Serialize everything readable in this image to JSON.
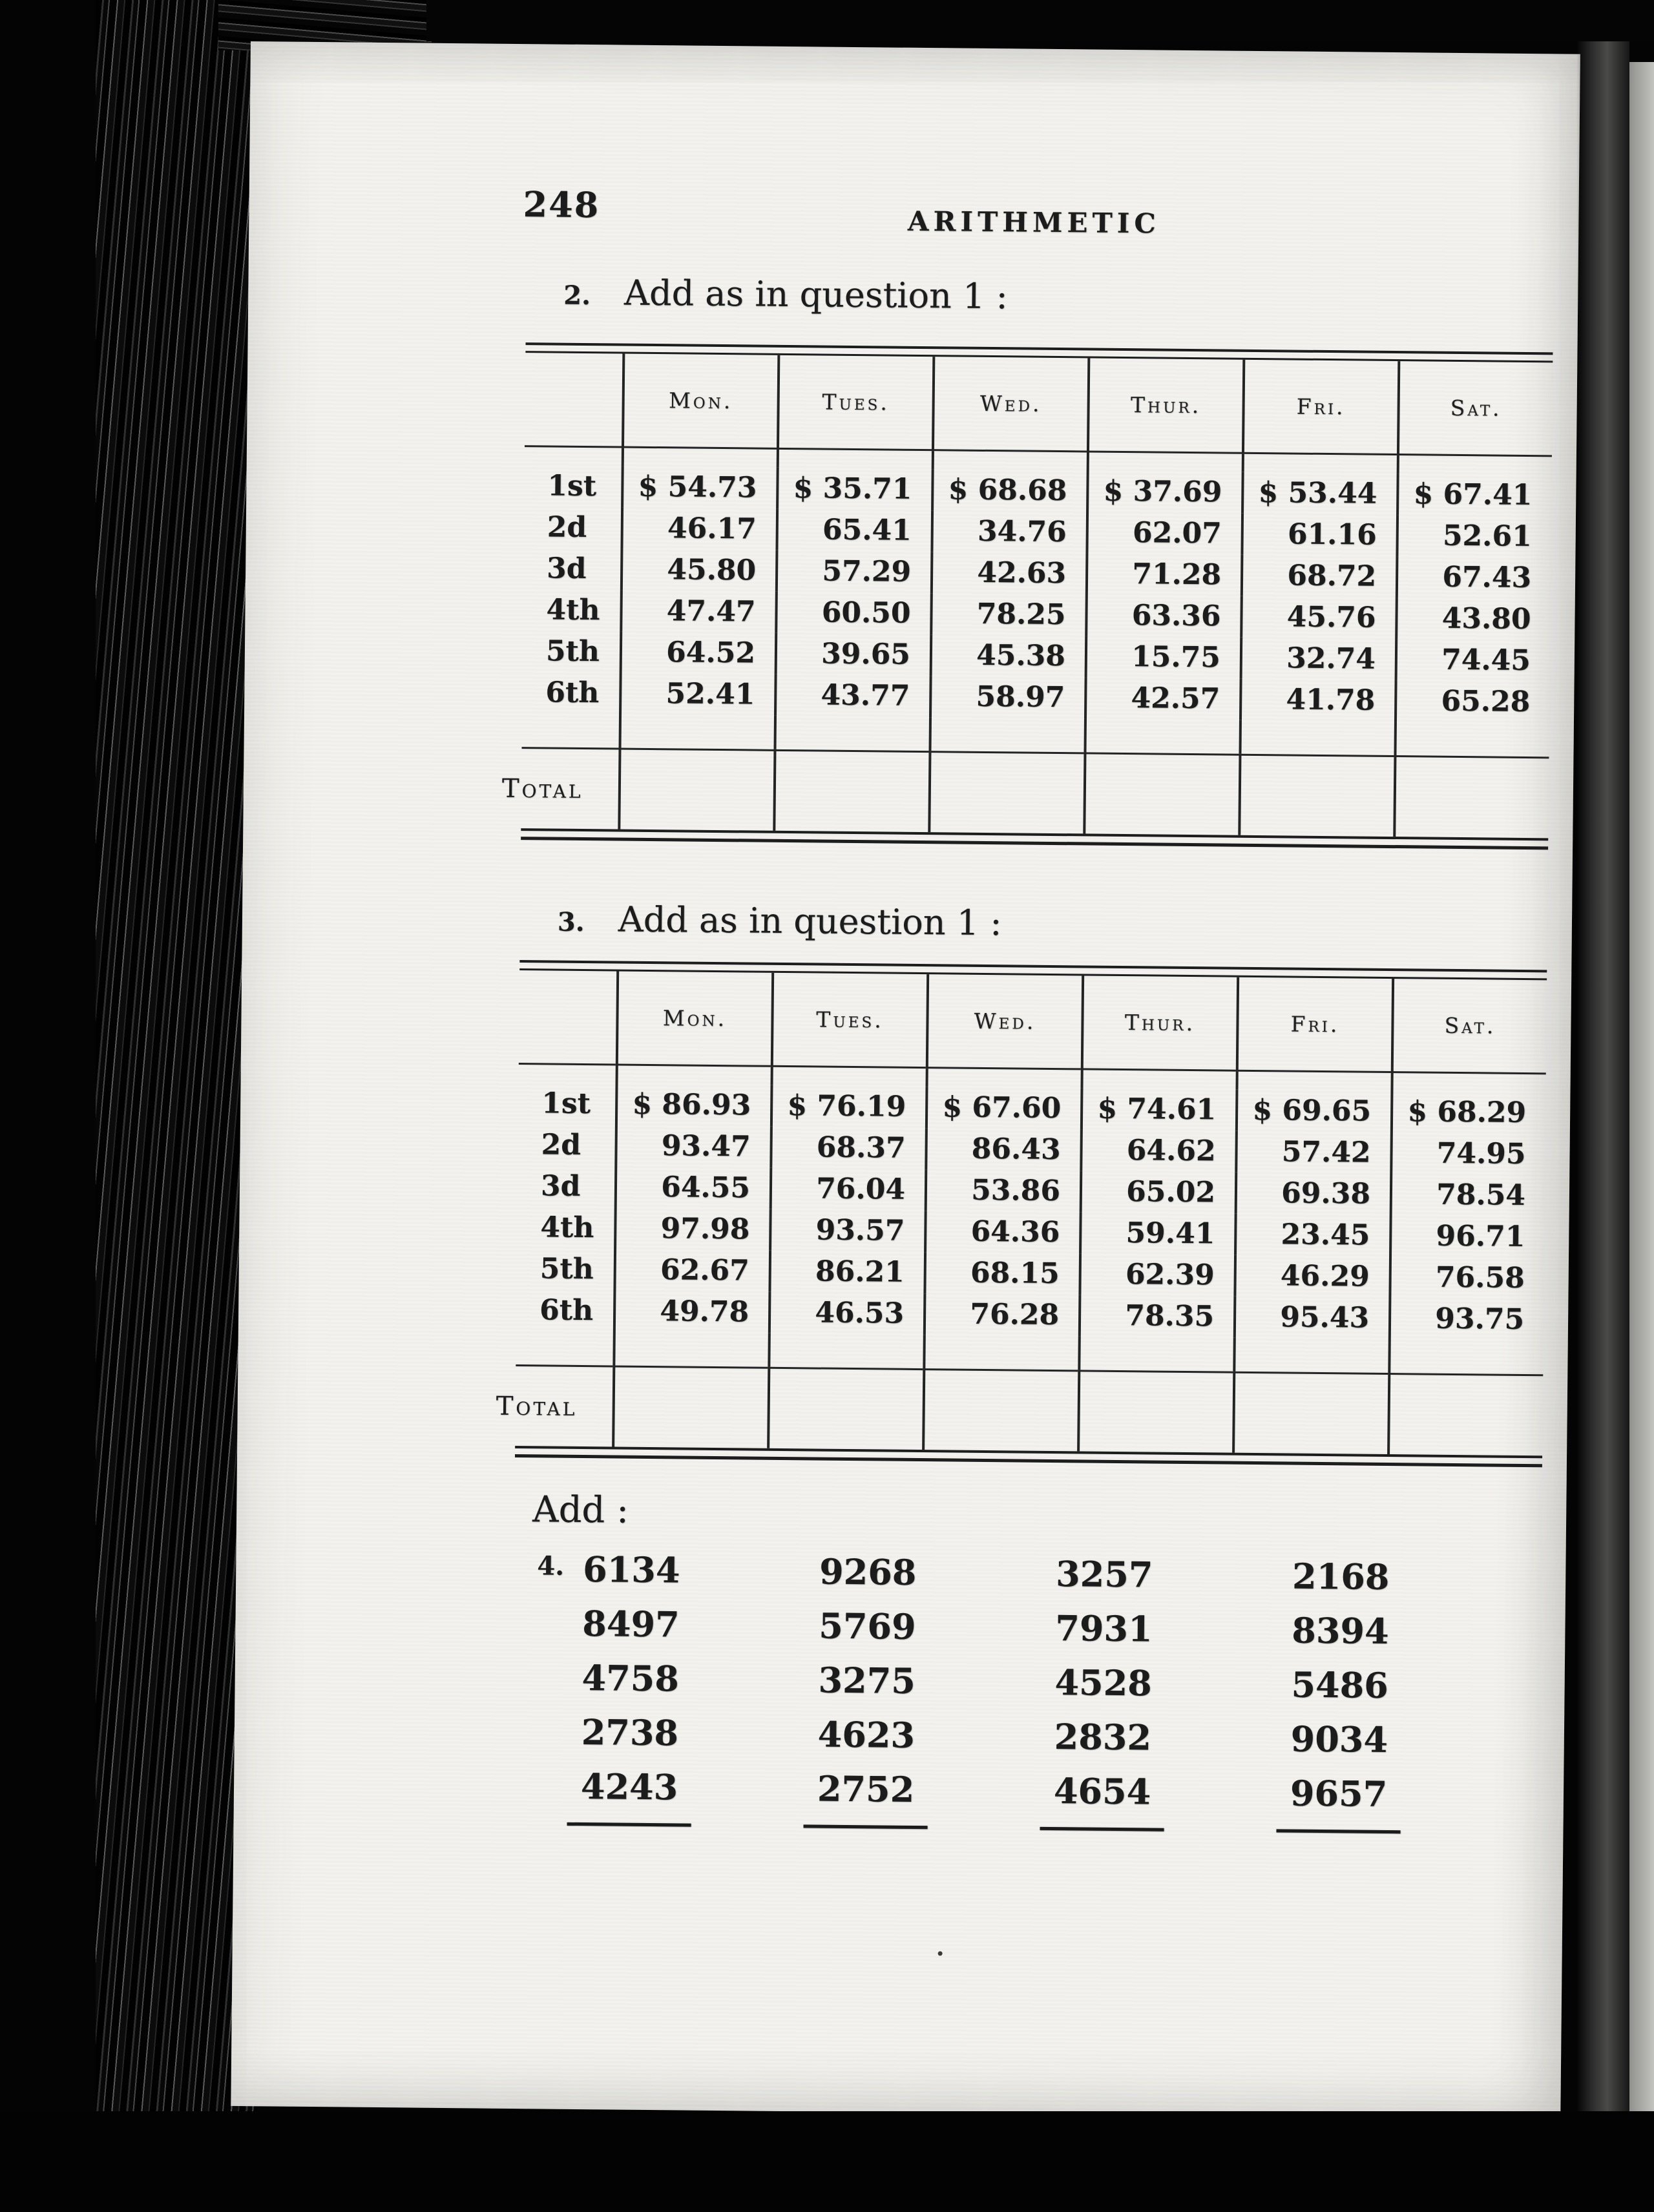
{
  "page_number": "248",
  "running_head": "ARITHMETIC",
  "colors": {
    "paper": "#f3f2ee",
    "ink": "#1c1c1c"
  },
  "problems": {
    "q2": {
      "num": "2.",
      "text": "Add as in question 1 :"
    },
    "q3": {
      "num": "3.",
      "text": "Add as in question 1 :"
    }
  },
  "tables": [
    {
      "columns": [
        "Mon.",
        "Tues.",
        "Wed.",
        "Thur.",
        "Fri.",
        "Sat."
      ],
      "row_labels": [
        "1st",
        "2d",
        "3d",
        "4th",
        "5th",
        "6th"
      ],
      "rows": [
        [
          "$ 54.73",
          "$ 35.71",
          "$ 68.68",
          "$ 37.69",
          "$ 53.44",
          "$ 67.41"
        ],
        [
          "46.17",
          "65.41",
          "34.76",
          "62.07",
          "61.16",
          "52.61"
        ],
        [
          "45.80",
          "57.29",
          "42.63",
          "71.28",
          "68.72",
          "67.43"
        ],
        [
          "47.47",
          "60.50",
          "78.25",
          "63.36",
          "45.76",
          "43.80"
        ],
        [
          "64.52",
          "39.65",
          "45.38",
          "15.75",
          "32.74",
          "74.45"
        ],
        [
          "52.41",
          "43.77",
          "58.97",
          "42.57",
          "41.78",
          "65.28"
        ]
      ],
      "total_label": "Total",
      "totals": [
        "",
        "",
        "",
        "",
        "",
        ""
      ]
    },
    {
      "columns": [
        "Mon.",
        "Tues.",
        "Wed.",
        "Thur.",
        "Fri.",
        "Sat."
      ],
      "row_labels": [
        "1st",
        "2d",
        "3d",
        "4th",
        "5th",
        "6th"
      ],
      "rows": [
        [
          "$ 86.93",
          "$ 76.19",
          "$ 67.60",
          "$ 74.61",
          "$ 69.65",
          "$ 68.29"
        ],
        [
          "93.47",
          "68.37",
          "86.43",
          "64.62",
          "57.42",
          "74.95"
        ],
        [
          "64.55",
          "76.04",
          "53.86",
          "65.02",
          "69.38",
          "78.54"
        ],
        [
          "97.98",
          "93.57",
          "64.36",
          "59.41",
          "23.45",
          "96.71"
        ],
        [
          "62.67",
          "86.21",
          "68.15",
          "62.39",
          "46.29",
          "76.58"
        ],
        [
          "49.78",
          "46.53",
          "76.28",
          "78.35",
          "95.43",
          "93.75"
        ]
      ],
      "total_label": "Total",
      "totals": [
        "",
        "",
        "",
        "",
        "",
        ""
      ]
    }
  ],
  "add_section": {
    "label": "Add :",
    "num": "4."
  },
  "addition_columns": [
    [
      "6134",
      "8497",
      "4758",
      "2738",
      "4243"
    ],
    [
      "9268",
      "5769",
      "3275",
      "4623",
      "2752"
    ],
    [
      "3257",
      "7931",
      "4528",
      "2832",
      "4654"
    ],
    [
      "2168",
      "8394",
      "5486",
      "9034",
      "9657"
    ]
  ]
}
